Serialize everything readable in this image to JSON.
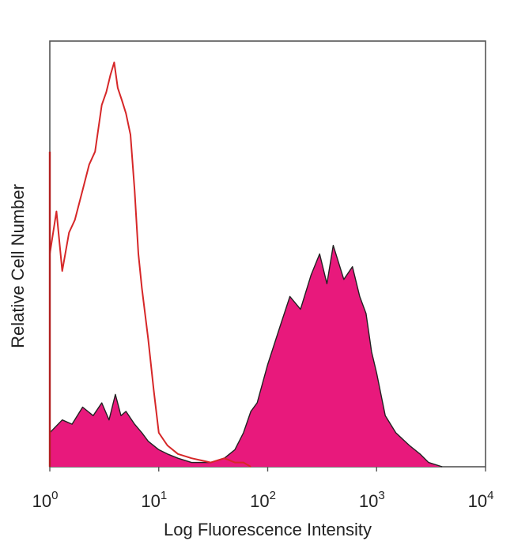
{
  "chart_data": {
    "type": "area",
    "title": "",
    "xlabel": "Log Fluorescence Intensity",
    "ylabel": "Relative Cell Number",
    "xscale": "log",
    "xlim": [
      1,
      10000
    ],
    "ylim": [
      0,
      1
    ],
    "grid": false,
    "legend": "none",
    "x_ticks": [
      {
        "base": "10",
        "exp": "0",
        "value": 1
      },
      {
        "base": "10",
        "exp": "1",
        "value": 10
      },
      {
        "base": "10",
        "exp": "2",
        "value": 100
      },
      {
        "base": "10",
        "exp": "3",
        "value": 1000
      },
      {
        "base": "10",
        "exp": "4",
        "value": 10000
      }
    ],
    "series": [
      {
        "style": "filled",
        "fill_color": "#e8197c",
        "edge_color": "#222222",
        "x": [
          1,
          1.3,
          1.6,
          2,
          2.5,
          3,
          3.5,
          4,
          4.5,
          5,
          6,
          7,
          8,
          10,
          12,
          15,
          20,
          30,
          40,
          50,
          60,
          70,
          80,
          100,
          130,
          160,
          200,
          250,
          300,
          350,
          400,
          500,
          600,
          700,
          800,
          900,
          1000,
          1200,
          1500,
          2000,
          2500,
          3000,
          4000
        ],
        "values": [
          0.08,
          0.11,
          0.1,
          0.14,
          0.12,
          0.15,
          0.11,
          0.17,
          0.12,
          0.13,
          0.1,
          0.08,
          0.06,
          0.04,
          0.03,
          0.02,
          0.01,
          0.01,
          0.02,
          0.04,
          0.08,
          0.13,
          0.15,
          0.24,
          0.33,
          0.4,
          0.37,
          0.45,
          0.5,
          0.43,
          0.52,
          0.44,
          0.47,
          0.4,
          0.36,
          0.27,
          0.22,
          0.12,
          0.08,
          0.05,
          0.03,
          0.01,
          0
        ]
      },
      {
        "style": "line",
        "line_color": "#d62728",
        "x": [
          1,
          1.15,
          1.3,
          1.5,
          1.7,
          2,
          2.3,
          2.6,
          3,
          3.3,
          3.6,
          3.9,
          4.2,
          4.6,
          5,
          5.5,
          6,
          6.5,
          7,
          8,
          9,
          10,
          12,
          15,
          20,
          30,
          40,
          50,
          60,
          70
        ],
        "values": [
          0.5,
          0.6,
          0.46,
          0.55,
          0.58,
          0.65,
          0.71,
          0.74,
          0.85,
          0.88,
          0.92,
          0.95,
          0.89,
          0.86,
          0.83,
          0.78,
          0.65,
          0.5,
          0.42,
          0.3,
          0.18,
          0.08,
          0.05,
          0.03,
          0.02,
          0.01,
          0.02,
          0.01,
          0.01,
          0
        ]
      }
    ]
  }
}
